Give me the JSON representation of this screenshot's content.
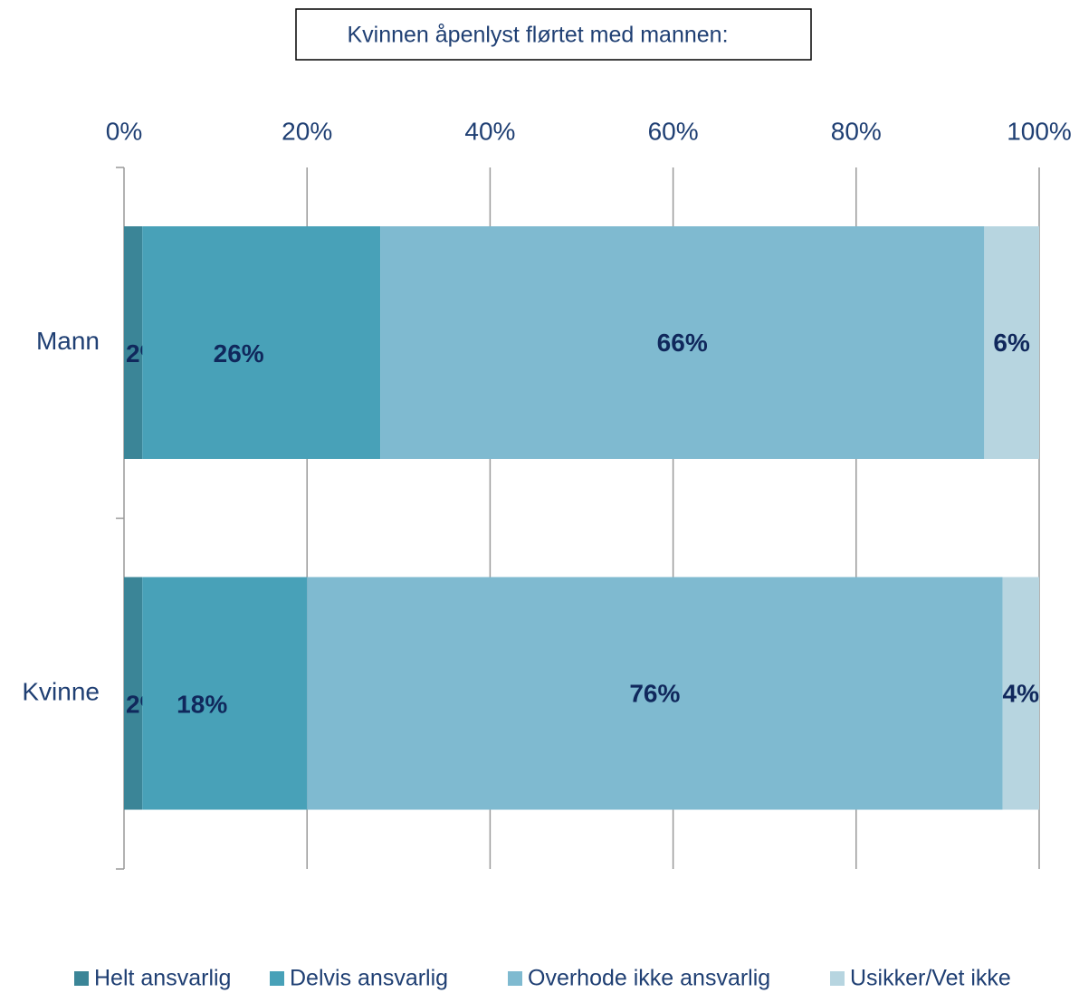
{
  "chart_data": {
    "type": "stacked_bar_horizontal",
    "title": "Kvinnen åpenlyst flørtet med mannen:",
    "categories": [
      "Mann",
      "Kvinne"
    ],
    "series": [
      {
        "name": "Helt ansvarlig",
        "color": "#3b8597",
        "values": [
          2,
          2
        ],
        "value_labels": [
          "2%",
          "2%"
        ]
      },
      {
        "name": "Delvis ansvarlig",
        "color": "#48a1b8",
        "values": [
          26,
          18
        ],
        "value_labels": [
          "26%",
          "18%"
        ]
      },
      {
        "name": "Overhode ikke ansvarlig",
        "color": "#7fbad0",
        "values": [
          66,
          76
        ],
        "value_labels": [
          "66%",
          "76%"
        ]
      },
      {
        "name": "Usikker/Vet ikke",
        "color": "#b7d5e0",
        "values": [
          6,
          4
        ],
        "value_labels": [
          "6%",
          "4%"
        ]
      }
    ],
    "xlim": [
      0,
      100
    ],
    "xticks": [
      {
        "value": 0,
        "label": "0%"
      },
      {
        "value": 20,
        "label": "20%"
      },
      {
        "value": 40,
        "label": "40%"
      },
      {
        "value": 60,
        "label": "60%"
      },
      {
        "value": 80,
        "label": "80%"
      },
      {
        "value": 100,
        "label": "100%"
      }
    ],
    "grid": true,
    "legend": "bottom"
  }
}
